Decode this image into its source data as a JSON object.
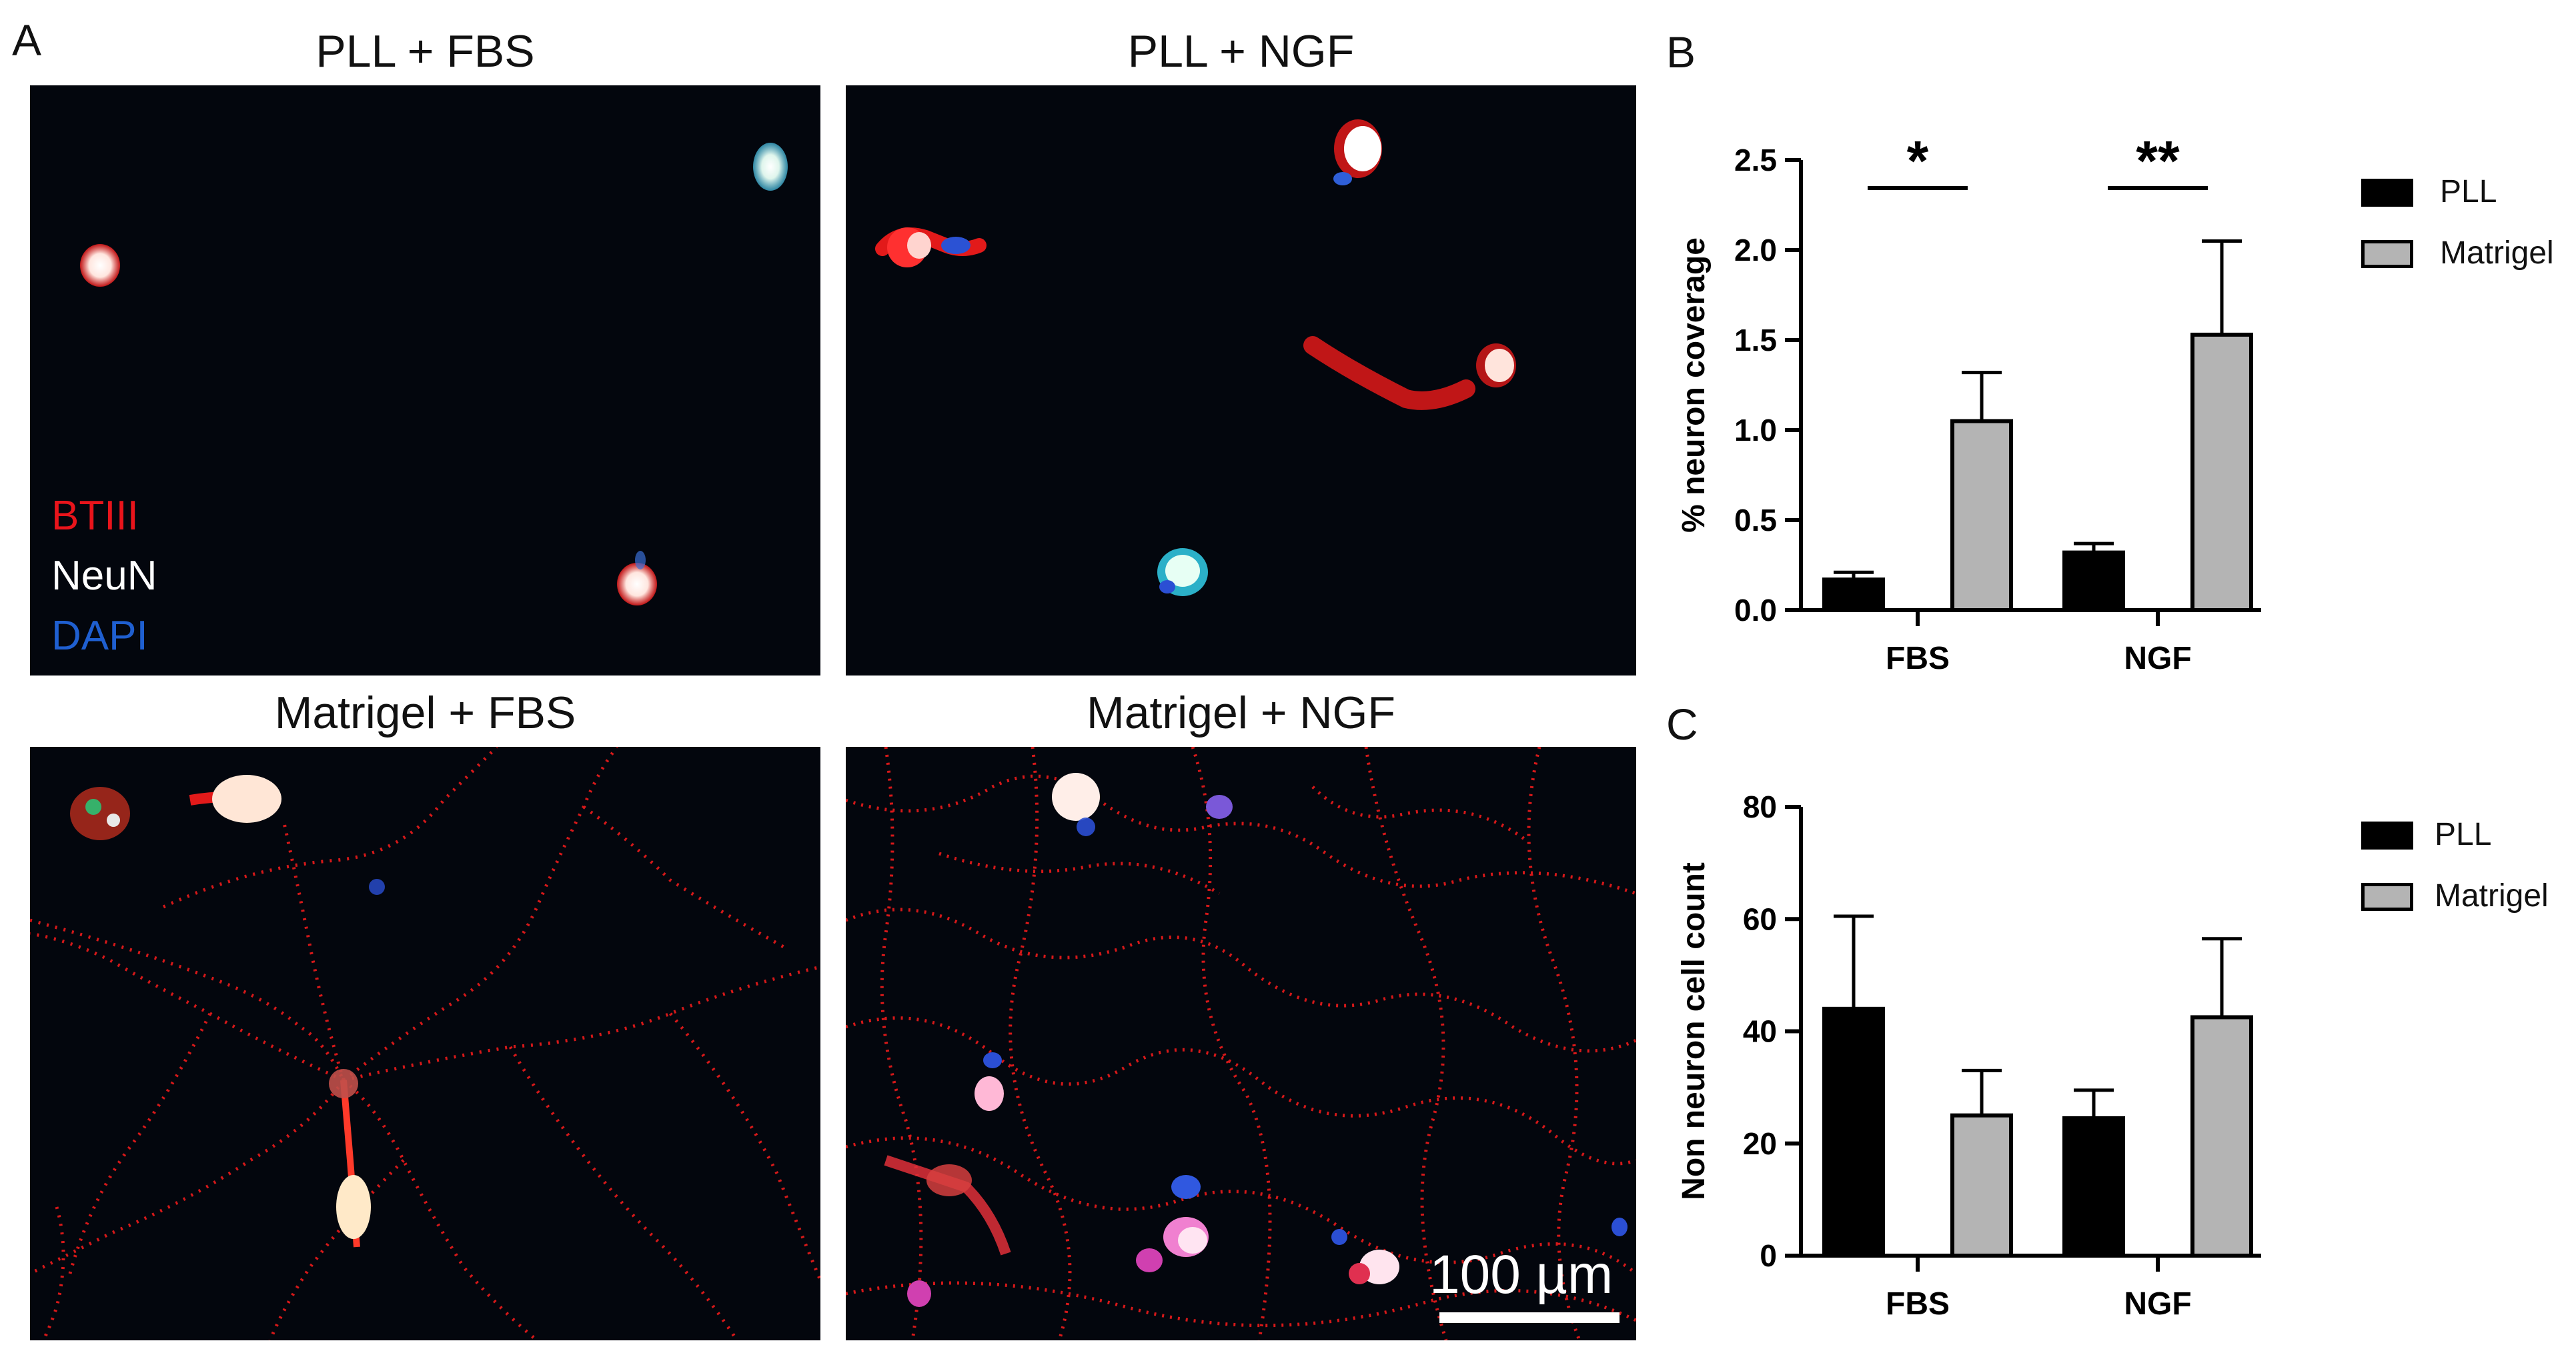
{
  "panel_labels": {
    "a": "A",
    "b": "B",
    "c": "C"
  },
  "micrographs": [
    {
      "title": "PLL + FBS"
    },
    {
      "title": "PLL + NGF"
    },
    {
      "title": "Matrigel + FBS"
    },
    {
      "title": "Matrigel + NGF"
    }
  ],
  "stain_legend": [
    {
      "label": "BTIII",
      "color": "#e8141b"
    },
    {
      "label": "NeuN",
      "color": "#ffffff"
    },
    {
      "label": "DAPI",
      "color": "#1f5fd0"
    }
  ],
  "scale_bar": {
    "label": "100 µm"
  },
  "colors": {
    "pll": "#000000",
    "matrigel": "#b4b4b4"
  },
  "chart_data": [
    {
      "type": "bar",
      "panel": "B",
      "categories": [
        "FBS",
        "NGF"
      ],
      "series": [
        {
          "name": "PLL",
          "values": [
            0.17,
            0.32
          ],
          "errors": [
            0.04,
            0.05
          ]
        },
        {
          "name": "Matrigel",
          "values": [
            1.05,
            1.53
          ],
          "errors": [
            0.27,
            0.52
          ]
        }
      ],
      "ylabel": "% neuron coverage",
      "ylim": [
        0,
        2.5
      ],
      "yticks": [
        "0.0",
        "0.5",
        "1.0",
        "1.5",
        "2.0",
        "2.5"
      ],
      "significance": [
        "*",
        "**"
      ],
      "legend_position": "right"
    },
    {
      "type": "bar",
      "panel": "C",
      "categories": [
        "FBS",
        "NGF"
      ],
      "series": [
        {
          "name": "PLL",
          "values": [
            44,
            24.5
          ],
          "errors": [
            16.5,
            5
          ]
        },
        {
          "name": "Matrigel",
          "values": [
            25,
            42.5
          ],
          "errors": [
            8,
            14
          ]
        }
      ],
      "ylabel": "Non neuron cell count",
      "ylim": [
        0,
        80
      ],
      "yticks": [
        "0",
        "20",
        "40",
        "60",
        "80"
      ],
      "legend_position": "right"
    }
  ]
}
